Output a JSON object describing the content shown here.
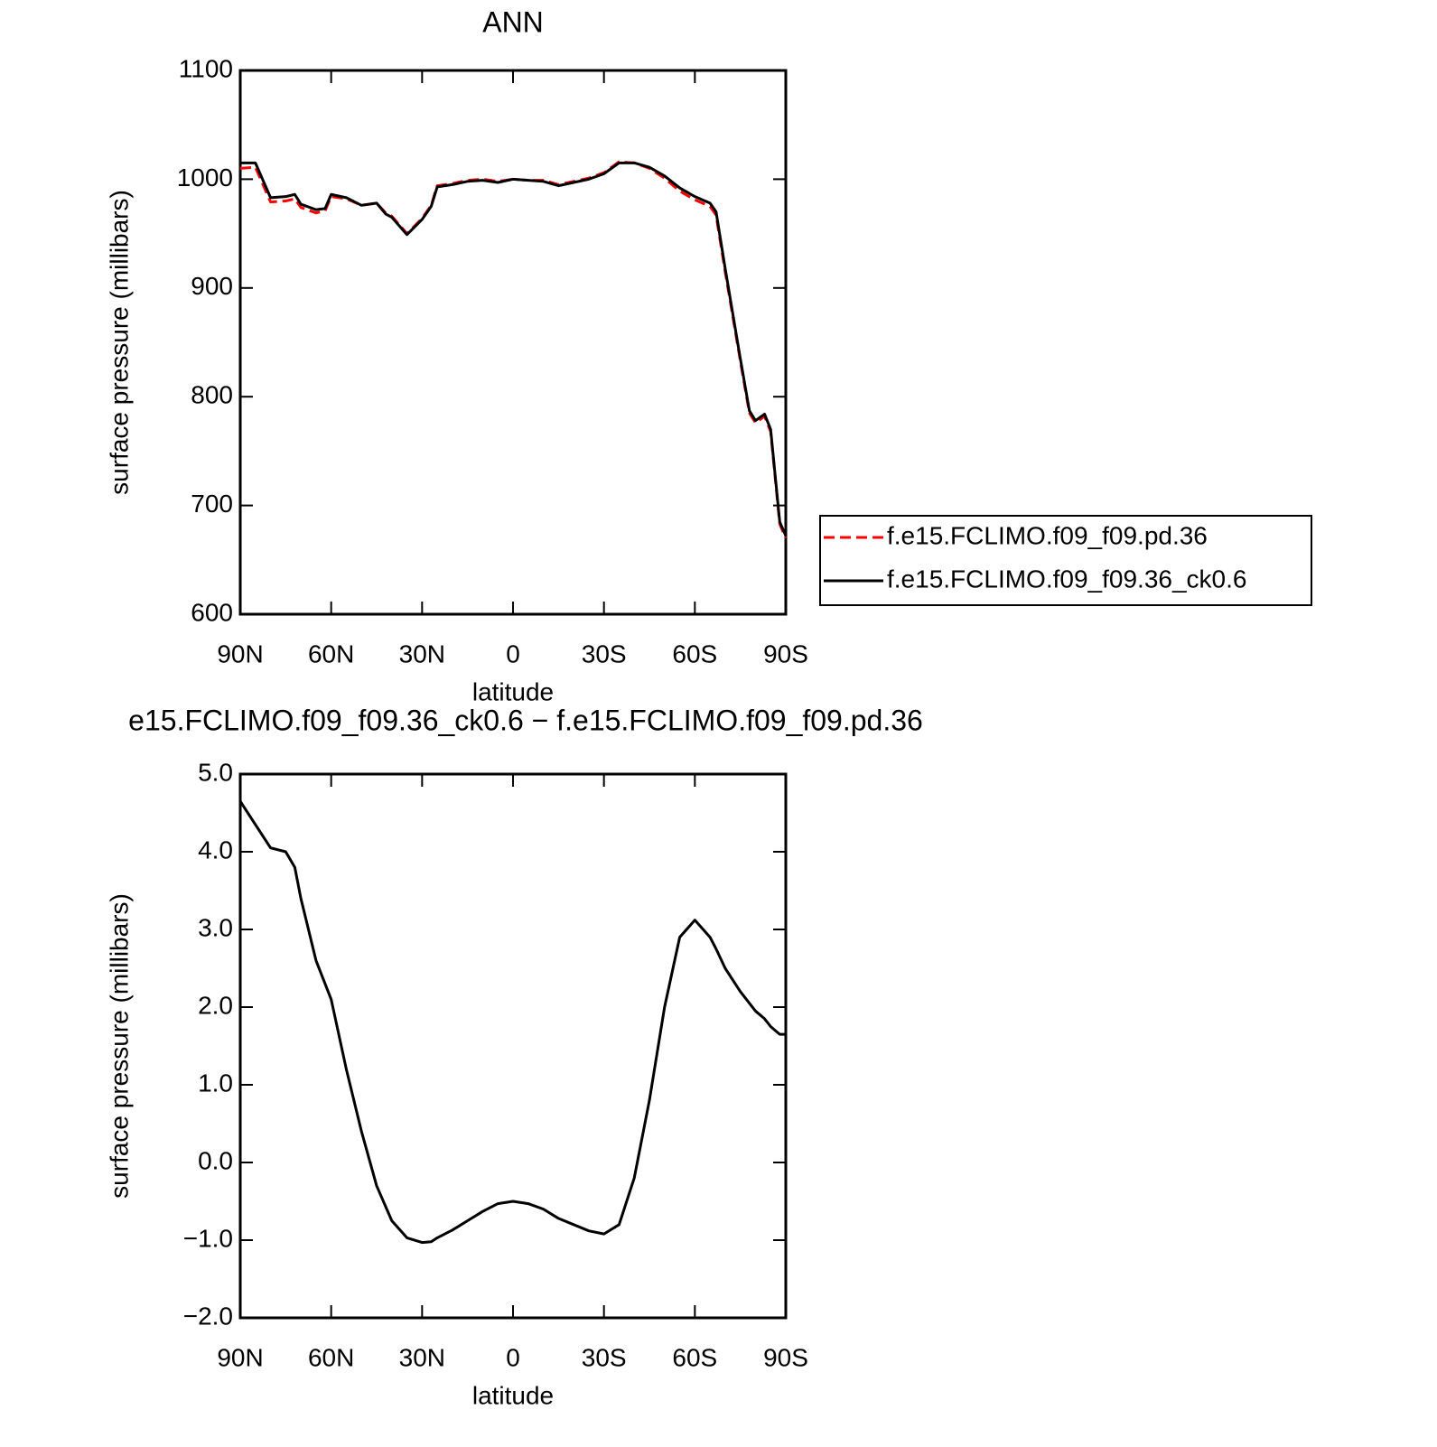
{
  "chart_data": [
    {
      "type": "line",
      "title": "ANN",
      "xlabel": "latitude",
      "ylabel": "surface pressure (millibars)",
      "x": [
        90,
        85,
        80,
        75,
        72,
        70,
        65,
        62,
        60,
        55,
        50,
        45,
        42,
        40,
        35,
        30,
        27,
        25,
        20,
        15,
        10,
        5,
        0,
        -5,
        -10,
        -15,
        -20,
        -25,
        -30,
        -35,
        -40,
        -45,
        -50,
        -55,
        -60,
        -65,
        -67,
        -70,
        -75,
        -78,
        -80,
        -83,
        -85,
        -88,
        -90
      ],
      "series": [
        {
          "name": "f.e15.FCLIMO.f09_f09.pd.36",
          "color": "#ff0000",
          "dash": "dashed",
          "values": [
            1010,
            1011,
            979,
            980,
            982,
            974,
            969,
            971,
            984,
            982,
            976,
            978,
            969,
            966,
            950,
            964,
            976,
            994,
            996,
            999,
            1000,
            998,
            1000,
            999,
            999,
            995,
            998,
            1001,
            1006,
            1016,
            1015,
            1010,
            1001,
            989,
            981,
            975,
            967,
            915,
            833,
            785,
            776,
            782,
            768,
            683,
            670
          ]
        },
        {
          "name": "f.e15.FCLIMO.f09_f09.36_ck0.6",
          "color": "#000000",
          "dash": "solid",
          "values": [
            1015,
            1015,
            983,
            984,
            986,
            977,
            972,
            973,
            986,
            983,
            976,
            978,
            968,
            965,
            949,
            963,
            975,
            993,
            995,
            998,
            999,
            997,
            1000,
            999,
            998,
            994,
            997,
            1000,
            1005,
            1015,
            1015,
            1011,
            1003,
            992,
            984,
            978,
            970,
            918,
            835,
            787,
            778,
            784,
            770,
            685,
            672
          ]
        }
      ],
      "xlim": [
        90,
        -90
      ],
      "xticks": [
        {
          "value": 90,
          "label": "90N"
        },
        {
          "value": 60,
          "label": "60N"
        },
        {
          "value": 30,
          "label": "30N"
        },
        0,
        {
          "value": -30,
          "label": "30S"
        },
        {
          "value": -60,
          "label": "60S"
        },
        {
          "value": -90,
          "label": "90S"
        }
      ],
      "ylim": [
        600,
        1100
      ],
      "yticks": [
        600,
        700,
        800,
        900,
        1000,
        1100
      ],
      "legend": "outside-right"
    },
    {
      "type": "line",
      "title": "e15.FCLIMO.f09_f09.36_ck0.6 − f.e15.FCLIMO.f09_f09.pd.36",
      "xlabel": "latitude",
      "ylabel": "surface pressure (millibars)",
      "x": [
        90,
        85,
        80,
        75,
        72,
        70,
        65,
        60,
        55,
        50,
        45,
        40,
        35,
        30,
        27,
        25,
        20,
        15,
        10,
        5,
        0,
        -5,
        -10,
        -15,
        -20,
        -25,
        -30,
        -35,
        -40,
        -45,
        -50,
        -55,
        -60,
        -65,
        -67,
        -70,
        -75,
        -78,
        -80,
        -83,
        -85,
        -88,
        -90
      ],
      "series": [
        {
          "color": "#000000",
          "dash": "solid",
          "values": [
            4.65,
            4.35,
            4.05,
            4.0,
            3.8,
            3.4,
            2.6,
            2.1,
            1.2,
            0.4,
            -0.3,
            -0.75,
            -0.97,
            -1.03,
            -1.02,
            -0.97,
            -0.87,
            -0.75,
            -0.63,
            -0.53,
            -0.5,
            -0.53,
            -0.6,
            -0.72,
            -0.8,
            -0.88,
            -0.92,
            -0.8,
            -0.2,
            0.8,
            2.0,
            2.9,
            3.12,
            2.9,
            2.75,
            2.5,
            2.2,
            2.05,
            1.95,
            1.85,
            1.75,
            1.65,
            1.65
          ]
        }
      ],
      "xlim": [
        90,
        -90
      ],
      "xticks": [
        {
          "value": 90,
          "label": "90N"
        },
        {
          "value": 60,
          "label": "60N"
        },
        {
          "value": 30,
          "label": "30N"
        },
        0,
        {
          "value": -30,
          "label": "30S"
        },
        {
          "value": -60,
          "label": "60S"
        },
        {
          "value": -90,
          "label": "90S"
        }
      ],
      "ylim": [
        -2,
        5
      ],
      "yticks": [
        {
          "value": -2,
          "label": "−2.0"
        },
        {
          "value": -1,
          "label": "−1.0"
        },
        {
          "value": 0,
          "label": "0.0"
        },
        {
          "value": 1,
          "label": "1.0"
        },
        {
          "value": 2,
          "label": "2.0"
        },
        {
          "value": 3,
          "label": "3.0"
        },
        {
          "value": 4,
          "label": "4.0"
        },
        {
          "value": 5,
          "label": "5.0"
        }
      ]
    }
  ]
}
